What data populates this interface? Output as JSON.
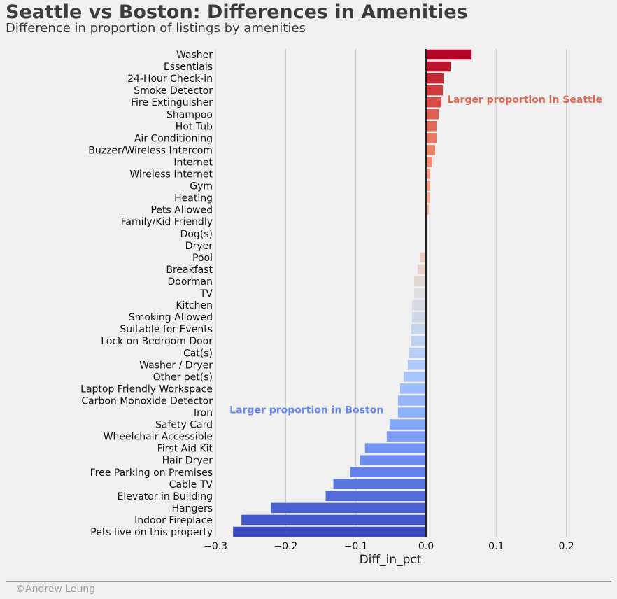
{
  "chart_data": {
    "type": "bar",
    "orientation": "horizontal",
    "title": "Seattle vs Boston: Differences in Amenities",
    "subtitle": "Difference in proportion of listings by amenities",
    "xlabel": "Diff_in_pct",
    "ylabel": "",
    "xlim": [
      -0.3,
      0.27
    ],
    "xticks": [
      -0.3,
      -0.2,
      -0.1,
      0.0,
      0.1,
      0.2
    ],
    "xtick_labels": [
      "−0.3",
      "−0.2",
      "−0.1",
      "0.0",
      "0.1",
      "0.2"
    ],
    "grid": "x",
    "palette": "coolwarm",
    "categories": [
      "Washer",
      "Essentials",
      "24-Hour Check-in",
      "Smoke Detector",
      "Fire Extinguisher",
      "Shampoo",
      "Hot Tub",
      "Air Conditioning",
      "Buzzer/Wireless Intercom",
      "Internet",
      "Wireless Internet",
      "Gym",
      "Heating",
      "Pets Allowed",
      "Family/Kid Friendly",
      "Dog(s)",
      "Dryer",
      "Pool",
      "Breakfast",
      "Doorman",
      "TV",
      "Kitchen",
      "Smoking Allowed",
      "Suitable for Events",
      "Lock on Bedroom Door",
      "Cat(s)",
      "Washer / Dryer",
      "Other pet(s)",
      "Laptop Friendly Workspace",
      "Carbon Monoxide Detector",
      "Iron",
      "Safety Card",
      "Wheelchair Accessible",
      "First Aid Kit",
      "Hair Dryer",
      "Free Parking on Premises",
      "Cable TV",
      "Elevator in Building",
      "Hangers",
      "Indoor Fireplace",
      "Pets live on this property"
    ],
    "values": [
      0.065,
      0.035,
      0.025,
      0.024,
      0.022,
      0.018,
      0.015,
      0.015,
      0.013,
      0.009,
      0.006,
      0.006,
      0.006,
      0.004,
      0.001,
      0.001,
      0.0,
      -0.009,
      -0.012,
      -0.017,
      -0.017,
      -0.02,
      -0.02,
      -0.021,
      -0.021,
      -0.024,
      -0.026,
      -0.032,
      -0.037,
      -0.04,
      -0.04,
      -0.052,
      -0.056,
      -0.087,
      -0.094,
      -0.108,
      -0.132,
      -0.143,
      -0.221,
      -0.263,
      -0.275
    ],
    "annotations": [
      {
        "text": "Larger proportion in Seattle",
        "x": 0.03,
        "y": "Fire Extinguisher",
        "color": "#e26952"
      },
      {
        "text": "Larger proportion in Boston",
        "x": -0.28,
        "y": "Iron",
        "color": "#6788ee"
      }
    ],
    "credit": "©Andrew Leung"
  }
}
